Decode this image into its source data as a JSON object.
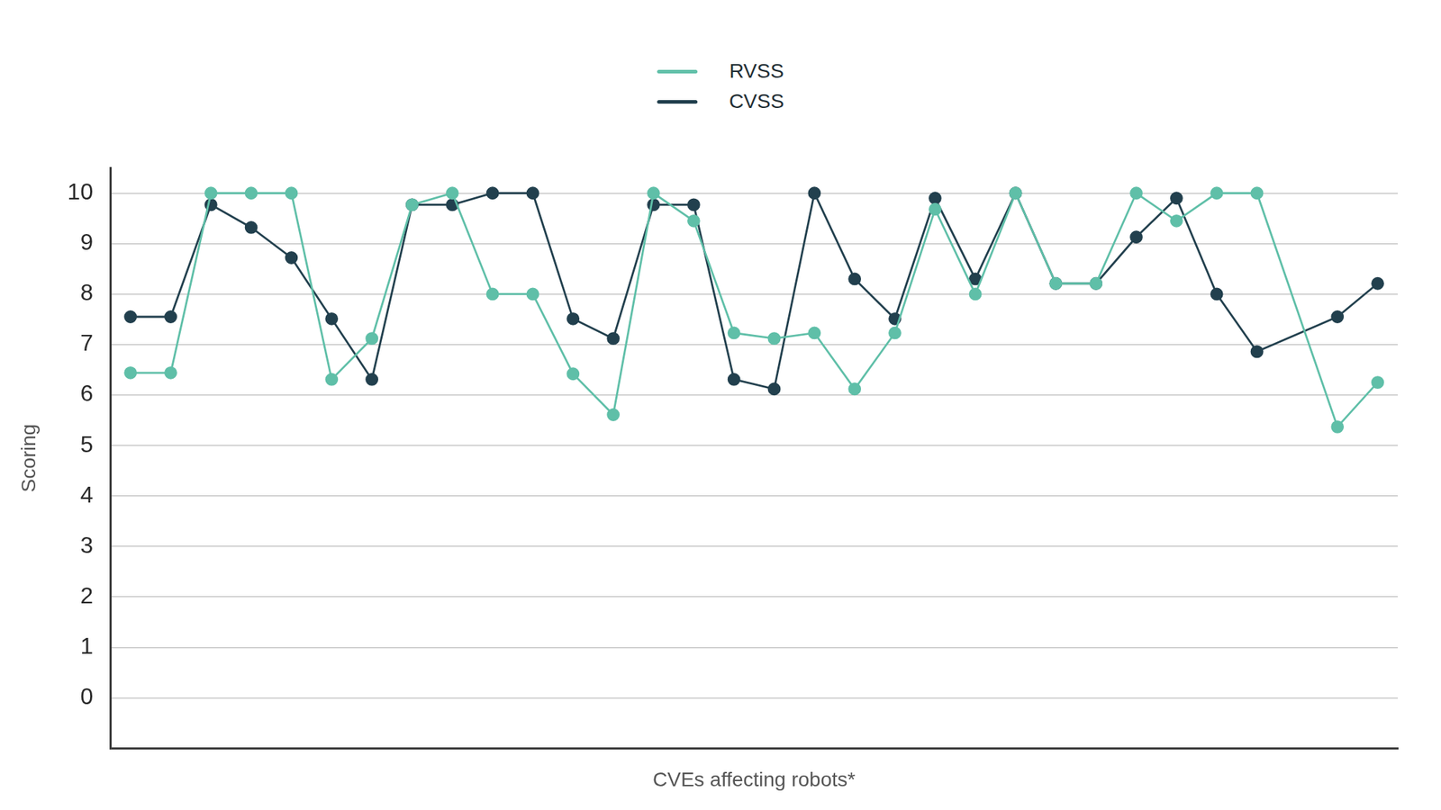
{
  "chart_data": {
    "type": "line",
    "x_label": "CVEs affecting robots*",
    "y_label": "Scoring",
    "categories": [
      null,
      null,
      null,
      null,
      null,
      null,
      null,
      null,
      null,
      null,
      null,
      null,
      null,
      null,
      null,
      null,
      null,
      null,
      null,
      null,
      null,
      null,
      null,
      null,
      null,
      null,
      null,
      null,
      null,
      null,
      null,
      null
    ],
    "series": [
      {
        "name": "RVSS",
        "color": "#5fbfa8",
        "values": [
          6.44,
          6.44,
          10,
          10,
          10,
          6.31,
          7.12,
          9.77,
          10,
          8.0,
          8.0,
          6.42,
          5.61,
          10,
          9.45,
          7.23,
          7.12,
          7.23,
          6.12,
          7.23,
          9.68,
          8.0,
          10,
          8.21,
          8.21,
          10,
          9.45,
          10,
          10,
          null,
          5.37,
          6.25
        ]
      },
      {
        "name": "CVSS",
        "color": "#22404e",
        "values": [
          7.55,
          7.55,
          9.77,
          9.32,
          8.72,
          7.51,
          6.31,
          9.77,
          9.77,
          10,
          10,
          7.51,
          7.12,
          9.77,
          9.77,
          6.31,
          6.12,
          10,
          8.3,
          7.51,
          9.9,
          8.3,
          10,
          8.21,
          8.21,
          9.13,
          9.9,
          8.0,
          6.86,
          null,
          7.55,
          8.21
        ]
      }
    ],
    "ylim": [
      -1,
      10.5
    ],
    "yticks": [
      0,
      1,
      2,
      3,
      4,
      5,
      6,
      7,
      8,
      9,
      10
    ],
    "grid": true,
    "legend": "top",
    "marker": "circle",
    "tick_labels": "y"
  }
}
